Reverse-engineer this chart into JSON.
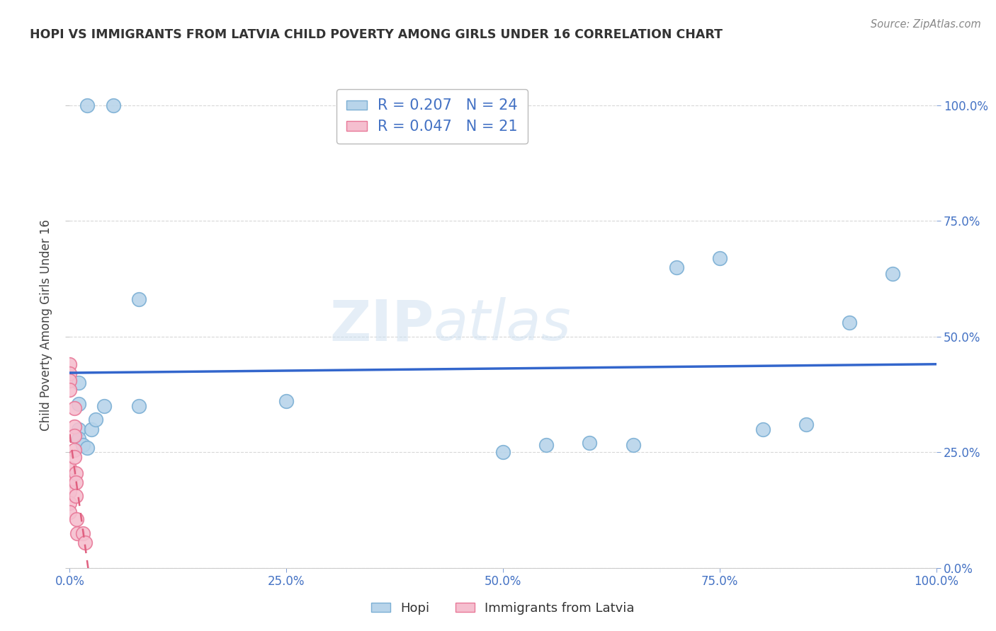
{
  "title": "HOPI VS IMMIGRANTS FROM LATVIA CHILD POVERTY AMONG GIRLS UNDER 16 CORRELATION CHART",
  "source": "Source: ZipAtlas.com",
  "ylabel": "Child Poverty Among Girls Under 16",
  "hopi_x": [
    0.02,
    0.05,
    0.01,
    0.01,
    0.01,
    0.01,
    0.015,
    0.02,
    0.025,
    0.03,
    0.04,
    0.08,
    0.08,
    0.25,
    0.5,
    0.55,
    0.6,
    0.65,
    0.7,
    0.75,
    0.8,
    0.85,
    0.9,
    0.95
  ],
  "hopi_y": [
    1.0,
    1.0,
    0.4,
    0.355,
    0.3,
    0.28,
    0.265,
    0.26,
    0.3,
    0.32,
    0.35,
    0.35,
    0.58,
    0.36,
    0.25,
    0.265,
    0.27,
    0.265,
    0.65,
    0.67,
    0.3,
    0.31,
    0.53,
    0.635
  ],
  "latvia_x": [
    0.0,
    0.0,
    0.0,
    0.0,
    0.0,
    0.0,
    0.0,
    0.0,
    0.0,
    0.005,
    0.005,
    0.005,
    0.005,
    0.005,
    0.007,
    0.007,
    0.007,
    0.008,
    0.009,
    0.015,
    0.018
  ],
  "latvia_y": [
    0.44,
    0.42,
    0.405,
    0.385,
    0.215,
    0.19,
    0.165,
    0.14,
    0.12,
    0.345,
    0.305,
    0.285,
    0.255,
    0.24,
    0.205,
    0.185,
    0.155,
    0.105,
    0.075,
    0.075,
    0.055
  ],
  "hopi_color": "#b8d4ea",
  "hopi_edge_color": "#7bafd4",
  "latvia_color": "#f5bfcf",
  "latvia_edge_color": "#e87898",
  "hopi_R": 0.207,
  "hopi_N": 24,
  "latvia_R": 0.047,
  "latvia_N": 21,
  "trend_hopi_color": "#3366cc",
  "trend_latvia_color": "#e06080",
  "watermark": "ZIPatlas",
  "xticks": [
    0.0,
    0.25,
    0.5,
    0.75,
    1.0
  ],
  "xtick_labels": [
    "0.0%",
    "25.0%",
    "50.0%",
    "75.0%",
    "100.0%"
  ],
  "yticks": [
    0.0,
    0.25,
    0.5,
    0.75,
    1.0
  ],
  "ytick_labels_right": [
    "0.0%",
    "25.0%",
    "50.0%",
    "75.0%",
    "100.0%"
  ],
  "title_color": "#333333",
  "grid_color": "#d8d8d8",
  "source_color": "#888888",
  "label_color": "#4472c4",
  "background_color": "#ffffff"
}
